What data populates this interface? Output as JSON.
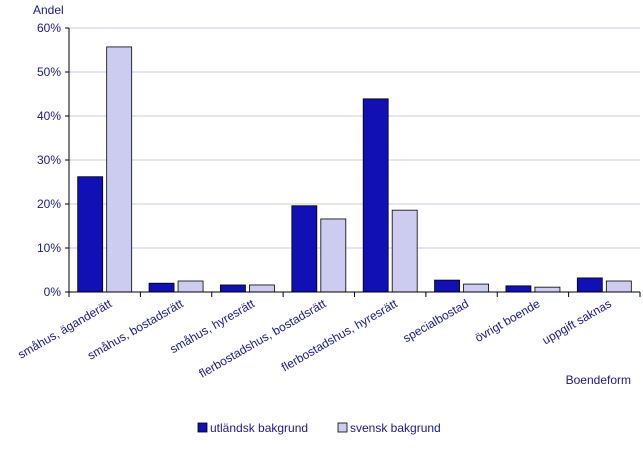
{
  "chart_data": {
    "type": "bar",
    "ylabel": "Andel",
    "xlabel": "Boendeform",
    "ylim": [
      0,
      60
    ],
    "yticks": [
      0,
      10,
      20,
      30,
      40,
      50,
      60
    ],
    "ytick_suffix": "%",
    "grid": true,
    "legend_position": "bottom",
    "categories": [
      "småhus, äganderätt",
      "småhus, bostadsrätt",
      "småhus, hyresrätt",
      "flerbostadshus, bostadsrätt",
      "flerbostadshus, hyresrätt",
      "specialbostad",
      "övrigt boende",
      "uppgift saknas"
    ],
    "series": [
      {
        "name": "utländsk bakgrund",
        "color": "#1010b4",
        "values": [
          26.2,
          2.0,
          1.6,
          19.6,
          43.9,
          2.7,
          1.4,
          3.2
        ]
      },
      {
        "name": "svensk bakgrund",
        "color": "#ccccf0",
        "values": [
          55.7,
          2.5,
          1.6,
          16.6,
          18.6,
          1.8,
          1.1,
          2.5
        ]
      }
    ],
    "colors": {
      "text": "#1a1a8c",
      "grid": "#c8c8e6",
      "axis": "#000000",
      "bar_stroke": "#000000"
    }
  }
}
